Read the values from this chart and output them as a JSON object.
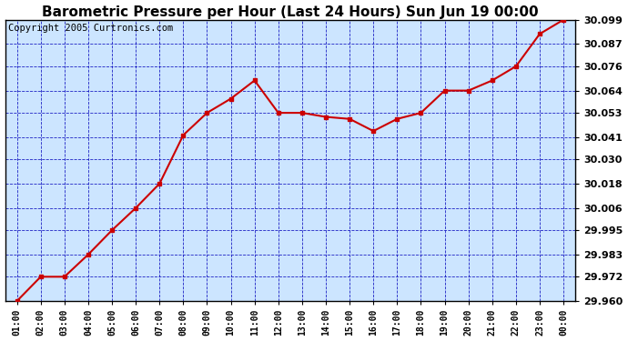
{
  "title": "Barometric Pressure per Hour (Last 24 Hours) Sun Jun 19 00:00",
  "copyright": "Copyright 2005 Curtronics.com",
  "x_labels": [
    "01:00",
    "02:00",
    "03:00",
    "04:00",
    "05:00",
    "06:00",
    "07:00",
    "08:00",
    "09:00",
    "10:00",
    "11:00",
    "12:00",
    "13:00",
    "14:00",
    "15:00",
    "16:00",
    "17:00",
    "18:00",
    "19:00",
    "20:00",
    "21:00",
    "22:00",
    "23:00",
    "00:00"
  ],
  "y_values": [
    29.96,
    29.972,
    29.972,
    29.983,
    29.995,
    30.006,
    30.018,
    30.042,
    30.053,
    30.06,
    30.069,
    30.053,
    30.053,
    30.051,
    30.05,
    30.044,
    30.05,
    30.053,
    30.064,
    30.064,
    30.069,
    30.076,
    30.092,
    30.099
  ],
  "ylim_min": 29.96,
  "ylim_max": 30.099,
  "y_ticks": [
    29.96,
    29.972,
    29.983,
    29.995,
    30.006,
    30.018,
    30.03,
    30.041,
    30.053,
    30.064,
    30.076,
    30.087,
    30.099
  ],
  "line_color": "#cc0000",
  "bg_color": "#cce5ff",
  "grid_color": "#0000bb",
  "title_fontsize": 11,
  "copyright_fontsize": 7.5
}
